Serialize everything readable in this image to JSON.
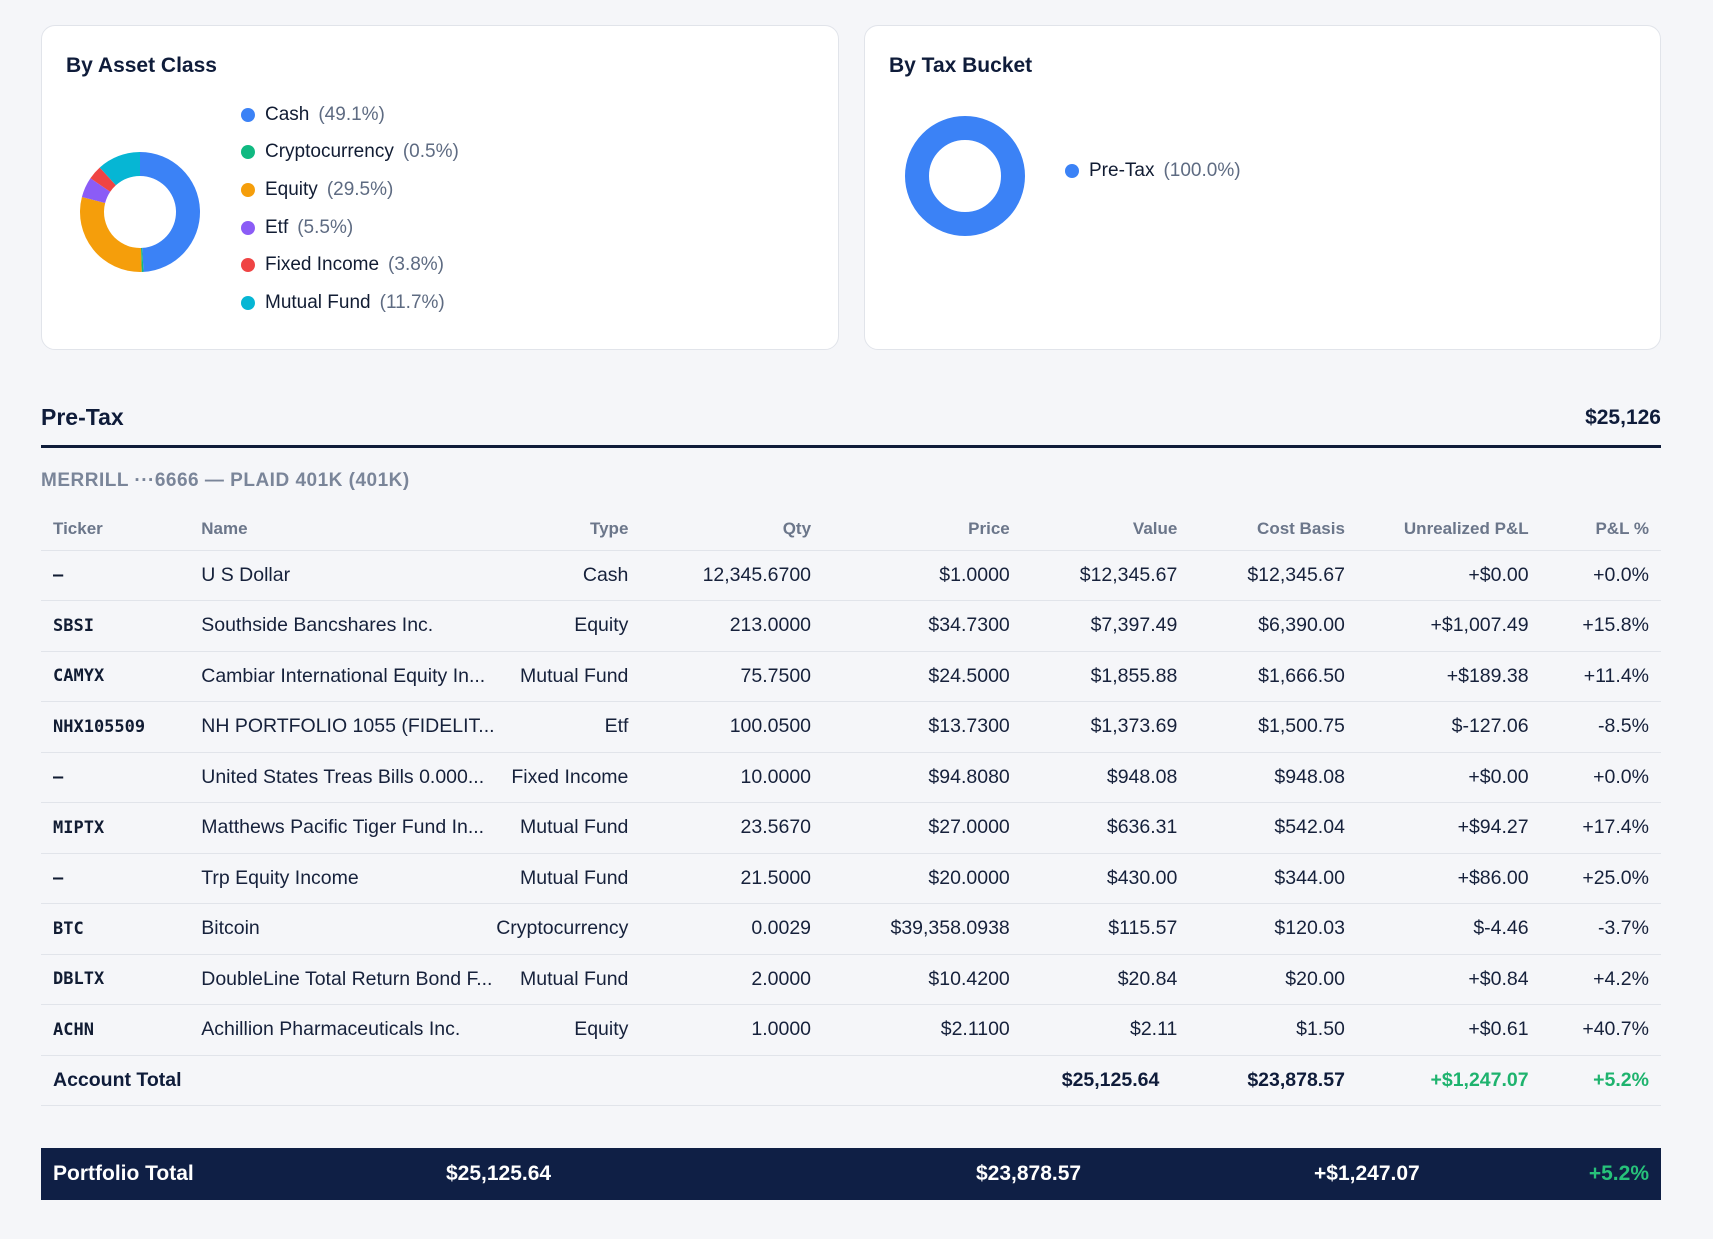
{
  "asset_class": {
    "title": "By Asset Class",
    "slices": [
      {
        "label": "Cash",
        "pct": "(49.1%)",
        "value": 49.1,
        "color": "#3b82f6"
      },
      {
        "label": "Cryptocurrency",
        "pct": "(0.5%)",
        "value": 0.5,
        "color": "#10b981"
      },
      {
        "label": "Equity",
        "pct": "(29.5%)",
        "value": 29.5,
        "color": "#f59e0b"
      },
      {
        "label": "Etf",
        "pct": "(5.5%)",
        "value": 5.5,
        "color": "#8b5cf6"
      },
      {
        "label": "Fixed Income",
        "pct": "(3.8%)",
        "value": 3.8,
        "color": "#ef4444"
      },
      {
        "label": "Mutual Fund",
        "pct": "(11.7%)",
        "value": 11.7,
        "color": "#06b6d4"
      }
    ]
  },
  "tax_bucket": {
    "title": "By Tax Bucket",
    "slices": [
      {
        "label": "Pre-Tax",
        "pct": "(100.0%)",
        "value": 100.0,
        "color": "#3b82f6"
      }
    ]
  },
  "group": {
    "title": "Pre-Tax",
    "total": "$25,126"
  },
  "account": {
    "label": "MERRILL ···6666 — PLAID 401K (401K)"
  },
  "table": {
    "headers": {
      "ticker": "Ticker",
      "name": "Name",
      "type": "Type",
      "qty": "Qty",
      "price": "Price",
      "value": "Value",
      "cost_basis": "Cost Basis",
      "pnl": "Unrealized P&L",
      "pnl_pct": "P&L %"
    },
    "rows": [
      {
        "ticker": "—",
        "name": "U S Dollar",
        "type": "Cash",
        "qty": "12,345.6700",
        "price": "$1.0000",
        "value": "$12,345.67",
        "cost_basis": "$12,345.67",
        "pnl": "+$0.00",
        "pnl_pct": "+0.0%"
      },
      {
        "ticker": "SBSI",
        "name": "Southside Bancshares Inc.",
        "type": "Equity",
        "qty": "213.0000",
        "price": "$34.7300",
        "value": "$7,397.49",
        "cost_basis": "$6,390.00",
        "pnl": "+$1,007.49",
        "pnl_pct": "+15.8%"
      },
      {
        "ticker": "CAMYX",
        "name": "Cambiar International Equity In...",
        "type": "Mutual Fund",
        "qty": "75.7500",
        "price": "$24.5000",
        "value": "$1,855.88",
        "cost_basis": "$1,666.50",
        "pnl": "+$189.38",
        "pnl_pct": "+11.4%"
      },
      {
        "ticker": "NHX105509",
        "name": "NH PORTFOLIO 1055 (FIDELIT...",
        "type": "Etf",
        "qty": "100.0500",
        "price": "$13.7300",
        "value": "$1,373.69",
        "cost_basis": "$1,500.75",
        "pnl": "$-127.06",
        "pnl_pct": "-8.5%"
      },
      {
        "ticker": "—",
        "name": "United States Treas Bills 0.000...",
        "type": "Fixed Income",
        "qty": "10.0000",
        "price": "$94.8080",
        "value": "$948.08",
        "cost_basis": "$948.08",
        "pnl": "+$0.00",
        "pnl_pct": "+0.0%"
      },
      {
        "ticker": "MIPTX",
        "name": "Matthews Pacific Tiger Fund In...",
        "type": "Mutual Fund",
        "qty": "23.5670",
        "price": "$27.0000",
        "value": "$636.31",
        "cost_basis": "$542.04",
        "pnl": "+$94.27",
        "pnl_pct": "+17.4%"
      },
      {
        "ticker": "—",
        "name": "Trp Equity Income",
        "type": "Mutual Fund",
        "qty": "21.5000",
        "price": "$20.0000",
        "value": "$430.00",
        "cost_basis": "$344.00",
        "pnl": "+$86.00",
        "pnl_pct": "+25.0%"
      },
      {
        "ticker": "BTC",
        "name": "Bitcoin",
        "type": "Cryptocurrency",
        "qty": "0.0029",
        "price": "$39,358.0938",
        "value": "$115.57",
        "cost_basis": "$120.03",
        "pnl": "$-4.46",
        "pnl_pct": "-3.7%"
      },
      {
        "ticker": "DBLTX",
        "name": "DoubleLine Total Return Bond F...",
        "type": "Mutual Fund",
        "qty": "2.0000",
        "price": "$10.4200",
        "value": "$20.84",
        "cost_basis": "$20.00",
        "pnl": "+$0.84",
        "pnl_pct": "+4.2%"
      },
      {
        "ticker": "ACHN",
        "name": "Achillion Pharmaceuticals Inc.",
        "type": "Equity",
        "qty": "1.0000",
        "price": "$2.1100",
        "value": "$2.11",
        "cost_basis": "$1.50",
        "pnl": "+$0.61",
        "pnl_pct": "+40.7%"
      }
    ],
    "account_total": {
      "label": "Account Total",
      "value": "$25,125.64",
      "cost_basis": "$23,878.57",
      "pnl": "+$1,247.07",
      "pnl_pct": "+5.2%"
    }
  },
  "portfolio_total": {
    "label": "Portfolio Total",
    "value": "$25,125.64",
    "cost_basis": "$23,878.57",
    "pnl": "+$1,247.07",
    "pnl_pct": "+5.2%"
  }
}
